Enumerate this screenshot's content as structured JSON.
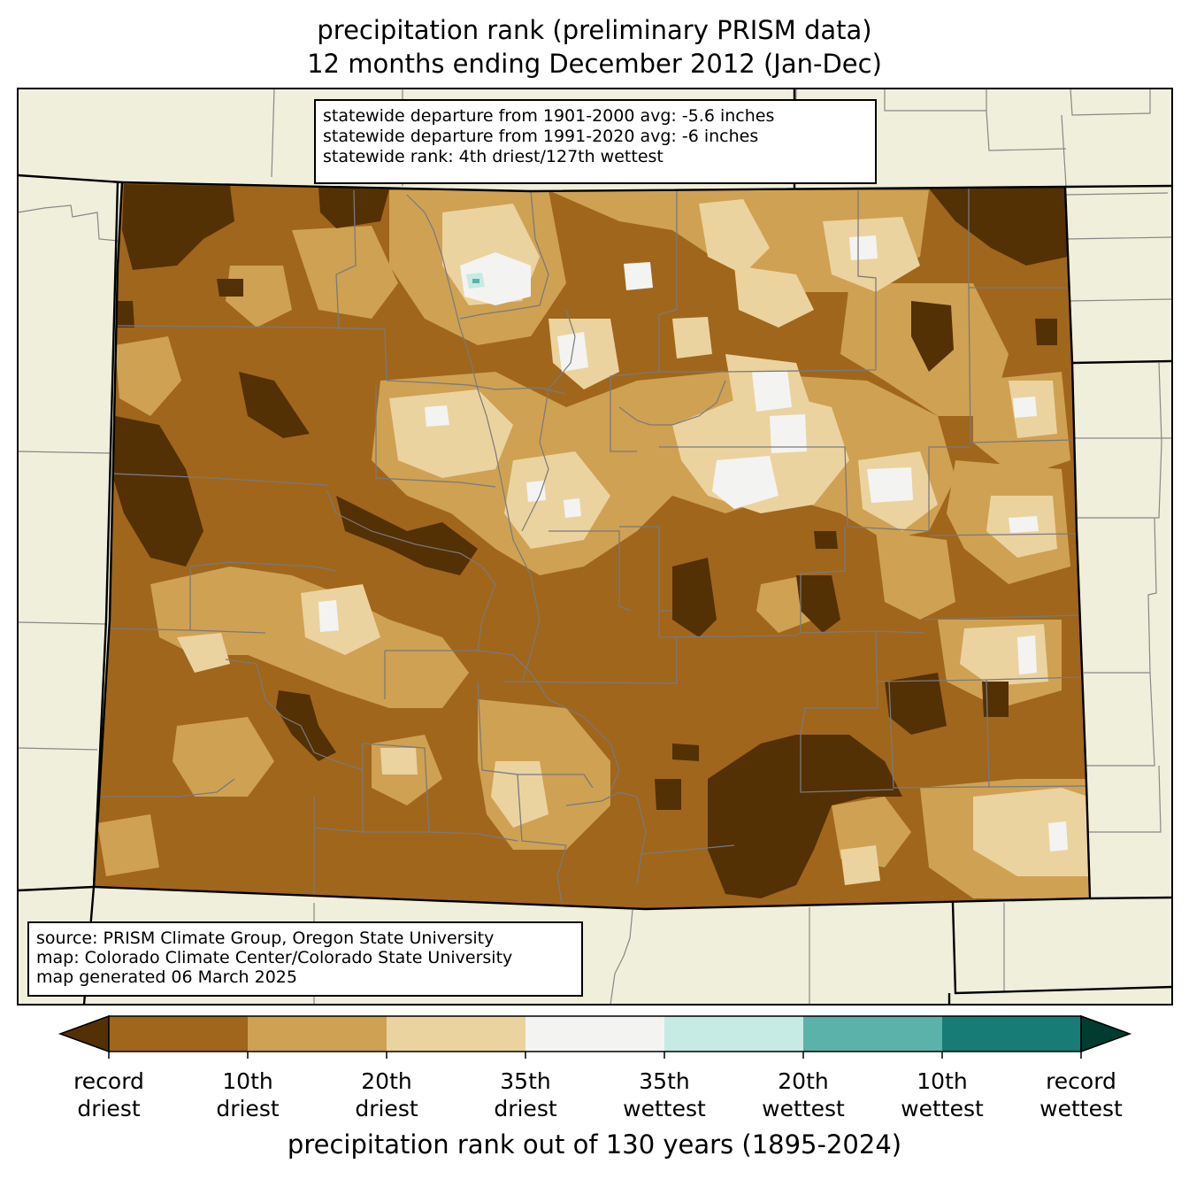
{
  "title": {
    "line1": "precipitation rank (preliminary PRISM data)",
    "line2": "12 months ending December 2012 (Jan-Dec)"
  },
  "stats": {
    "line1": "statewide departure from 1901-2000 avg: -5.6 inches",
    "line2": "statewide departure from 1991-2020 avg: -6 inches",
    "line3": "statewide rank: 4th driest/127th wettest"
  },
  "source": {
    "line1": "source: PRISM Climate Group, Oregon State University",
    "line2": "map: Colorado Climate Center/Colorado State University",
    "line3": "map generated 06 March 2025"
  },
  "colorbar": {
    "label": "precipitation rank out of 130 years (1895-2024)",
    "colors": {
      "record_driest": "#543005",
      "driest_10": "#a0661c",
      "driest_20": "#cfa153",
      "driest_35": "#ebd39f",
      "normal": "#f3f4f1",
      "wettest_35": "#c5ebe4",
      "wettest_20": "#5bb2a8",
      "wettest_10": "#177c75",
      "record_wettest": "#003c30"
    },
    "ticks": [
      {
        "line1": "record",
        "line2": "driest"
      },
      {
        "line1": "10th",
        "line2": "driest"
      },
      {
        "line1": "20th",
        "line2": "driest"
      },
      {
        "line1": "35th",
        "line2": "driest"
      },
      {
        "line1": "35th",
        "line2": "wettest"
      },
      {
        "line1": "20th",
        "line2": "wettest"
      },
      {
        "line1": "10th",
        "line2": "wettest"
      },
      {
        "line1": "record",
        "line2": "wettest"
      }
    ]
  },
  "map_colors": {
    "land_outside": "#efefdc",
    "neighbor_border": "#888888",
    "county_line": "#7a7a7a",
    "state_border": "#000000"
  }
}
